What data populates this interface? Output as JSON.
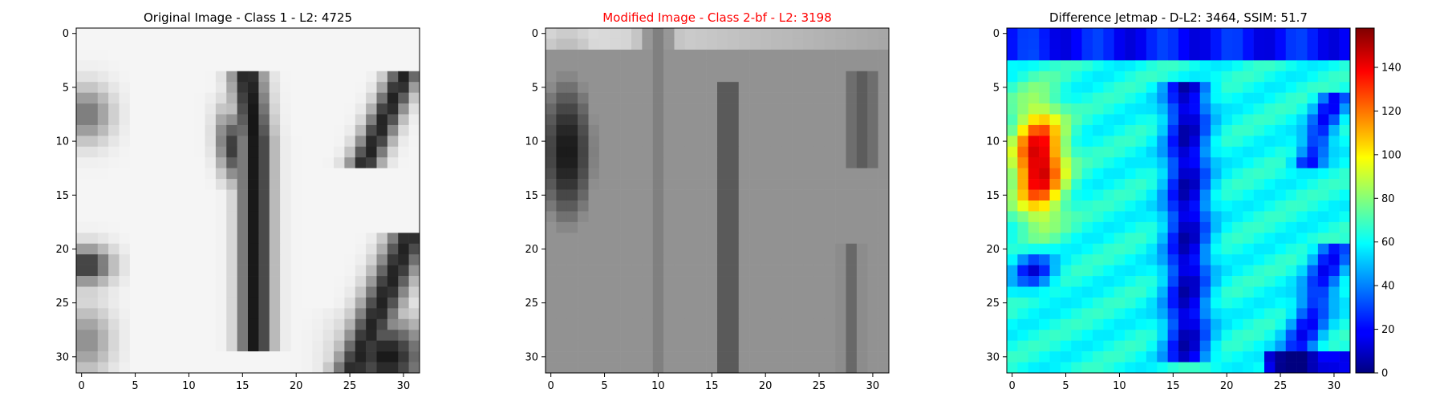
{
  "chart_data": [
    {
      "type": "heatmap",
      "title": "Original Image - Class 1 - L2: 4725",
      "title_color": "#000000",
      "colormap": "gray",
      "grid": false,
      "xlim": [
        -0.5,
        31.5
      ],
      "ylim": [
        31.5,
        -0.5
      ],
      "xticks": [
        0,
        5,
        10,
        15,
        20,
        25,
        30
      ],
      "yticks": [
        0,
        5,
        10,
        15,
        20,
        25,
        30
      ],
      "xlabel": "",
      "ylabel": ""
    },
    {
      "type": "heatmap",
      "title": "Modified Image - Class 2-bf - L2: 3198",
      "title_color": "#ff0000",
      "colormap": "gray",
      "grid": false,
      "xlim": [
        -0.5,
        31.5
      ],
      "ylim": [
        31.5,
        -0.5
      ],
      "xticks": [
        0,
        5,
        10,
        15,
        20,
        25,
        30
      ],
      "yticks": [
        0,
        5,
        10,
        15,
        20,
        25,
        30
      ],
      "xlabel": "",
      "ylabel": ""
    },
    {
      "type": "heatmap",
      "title": "Difference Jetmap - D-L2: 3464, SSIM: 51.7",
      "title_color": "#000000",
      "colormap": "jet",
      "grid": false,
      "xlim": [
        -0.5,
        31.5
      ],
      "ylim": [
        31.5,
        -0.5
      ],
      "xticks": [
        0,
        5,
        10,
        15,
        20,
        25,
        30
      ],
      "yticks": [
        0,
        5,
        10,
        15,
        20,
        25,
        30
      ],
      "xlabel": "",
      "ylabel": "",
      "colorbar": {
        "min": 0,
        "max": 158,
        "ticks": [
          0,
          20,
          40,
          60,
          80,
          100,
          120,
          140
        ]
      }
    }
  ]
}
